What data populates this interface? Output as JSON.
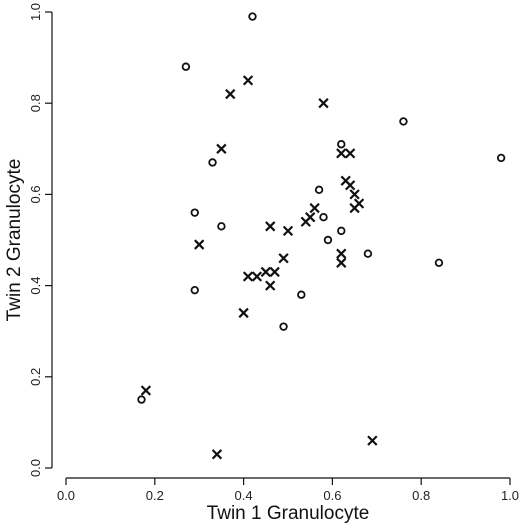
{
  "chart_data": {
    "type": "scatter",
    "xlabel": "Twin 1 Granulocyte",
    "ylabel": "Twin 2 Granulocyte",
    "xlim": [
      0,
      1
    ],
    "ylim": [
      0,
      1
    ],
    "x_ticks": [
      0.0,
      0.2,
      0.4,
      0.6,
      0.8,
      1.0
    ],
    "y_ticks": [
      0.0,
      0.2,
      0.4,
      0.6,
      0.8,
      1.0
    ],
    "x_tick_labels": [
      "0.0",
      "0.2",
      "0.4",
      "0.6",
      "0.8",
      "1.0"
    ],
    "y_tick_labels": [
      "0.0",
      "0.2",
      "0.4",
      "0.6",
      "0.8",
      "1.0"
    ],
    "grid": false,
    "series": [
      {
        "marker": "circle",
        "points": [
          [
            0.27,
            0.88
          ],
          [
            0.33,
            0.67
          ],
          [
            0.35,
            0.53
          ],
          [
            0.29,
            0.56
          ],
          [
            0.29,
            0.39
          ],
          [
            0.17,
            0.15
          ],
          [
            0.49,
            0.31
          ],
          [
            0.53,
            0.38
          ],
          [
            0.57,
            0.61
          ],
          [
            0.58,
            0.55
          ],
          [
            0.59,
            0.5
          ],
          [
            0.62,
            0.52
          ],
          [
            0.62,
            0.71
          ],
          [
            0.68,
            0.47
          ],
          [
            0.76,
            0.76
          ],
          [
            0.84,
            0.45
          ],
          [
            0.98,
            0.68
          ],
          [
            0.42,
            0.99
          ]
        ]
      },
      {
        "marker": "x",
        "points": [
          [
            0.18,
            0.17
          ],
          [
            0.34,
            0.03
          ],
          [
            0.3,
            0.49
          ],
          [
            0.35,
            0.7
          ],
          [
            0.37,
            0.82
          ],
          [
            0.41,
            0.85
          ],
          [
            0.4,
            0.34
          ],
          [
            0.41,
            0.42
          ],
          [
            0.43,
            0.42
          ],
          [
            0.45,
            0.43
          ],
          [
            0.47,
            0.43
          ],
          [
            0.46,
            0.4
          ],
          [
            0.46,
            0.53
          ],
          [
            0.49,
            0.46
          ],
          [
            0.5,
            0.52
          ],
          [
            0.54,
            0.54
          ],
          [
            0.55,
            0.55
          ],
          [
            0.56,
            0.57
          ],
          [
            0.58,
            0.8
          ],
          [
            0.62,
            0.45
          ],
          [
            0.62,
            0.47
          ],
          [
            0.62,
            0.69
          ],
          [
            0.63,
            0.63
          ],
          [
            0.64,
            0.62
          ],
          [
            0.64,
            0.69
          ],
          [
            0.65,
            0.6
          ],
          [
            0.65,
            0.57
          ],
          [
            0.66,
            0.58
          ],
          [
            0.69,
            0.06
          ]
        ]
      }
    ]
  }
}
